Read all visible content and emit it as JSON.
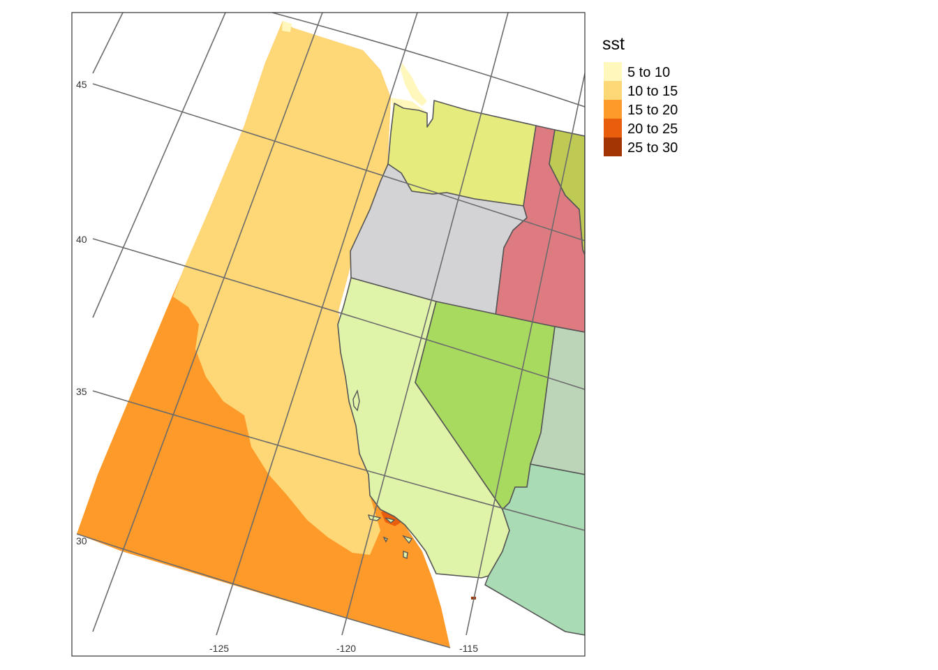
{
  "map": {
    "lon_labels": [
      "-125",
      "-120",
      "-115"
    ],
    "lat_labels": [
      "45",
      "40",
      "35",
      "30"
    ]
  },
  "legend": {
    "title": "sst",
    "items": [
      {
        "label": "5 to 10",
        "color": "#FFF7BC"
      },
      {
        "label": "10 to 15",
        "color": "#FED776"
      },
      {
        "label": "15 to 20",
        "color": "#FE9A29"
      },
      {
        "label": "20 to 25",
        "color": "#E95E0D"
      },
      {
        "label": "25 to 30",
        "color": "#A33403"
      }
    ]
  },
  "states": {
    "washington": {
      "color": "#E6EB7E"
    },
    "oregon": {
      "color": "#D3D2D4"
    },
    "idaho": {
      "color": "#DE7B81"
    },
    "montana": {
      "color": "#BFCA55"
    },
    "california": {
      "color": "#DFF4A9"
    },
    "nevada": {
      "color": "#A9DA60"
    },
    "utah": {
      "color": "#BCD5B8"
    },
    "arizona": {
      "color": "#A9DCB4"
    }
  }
}
